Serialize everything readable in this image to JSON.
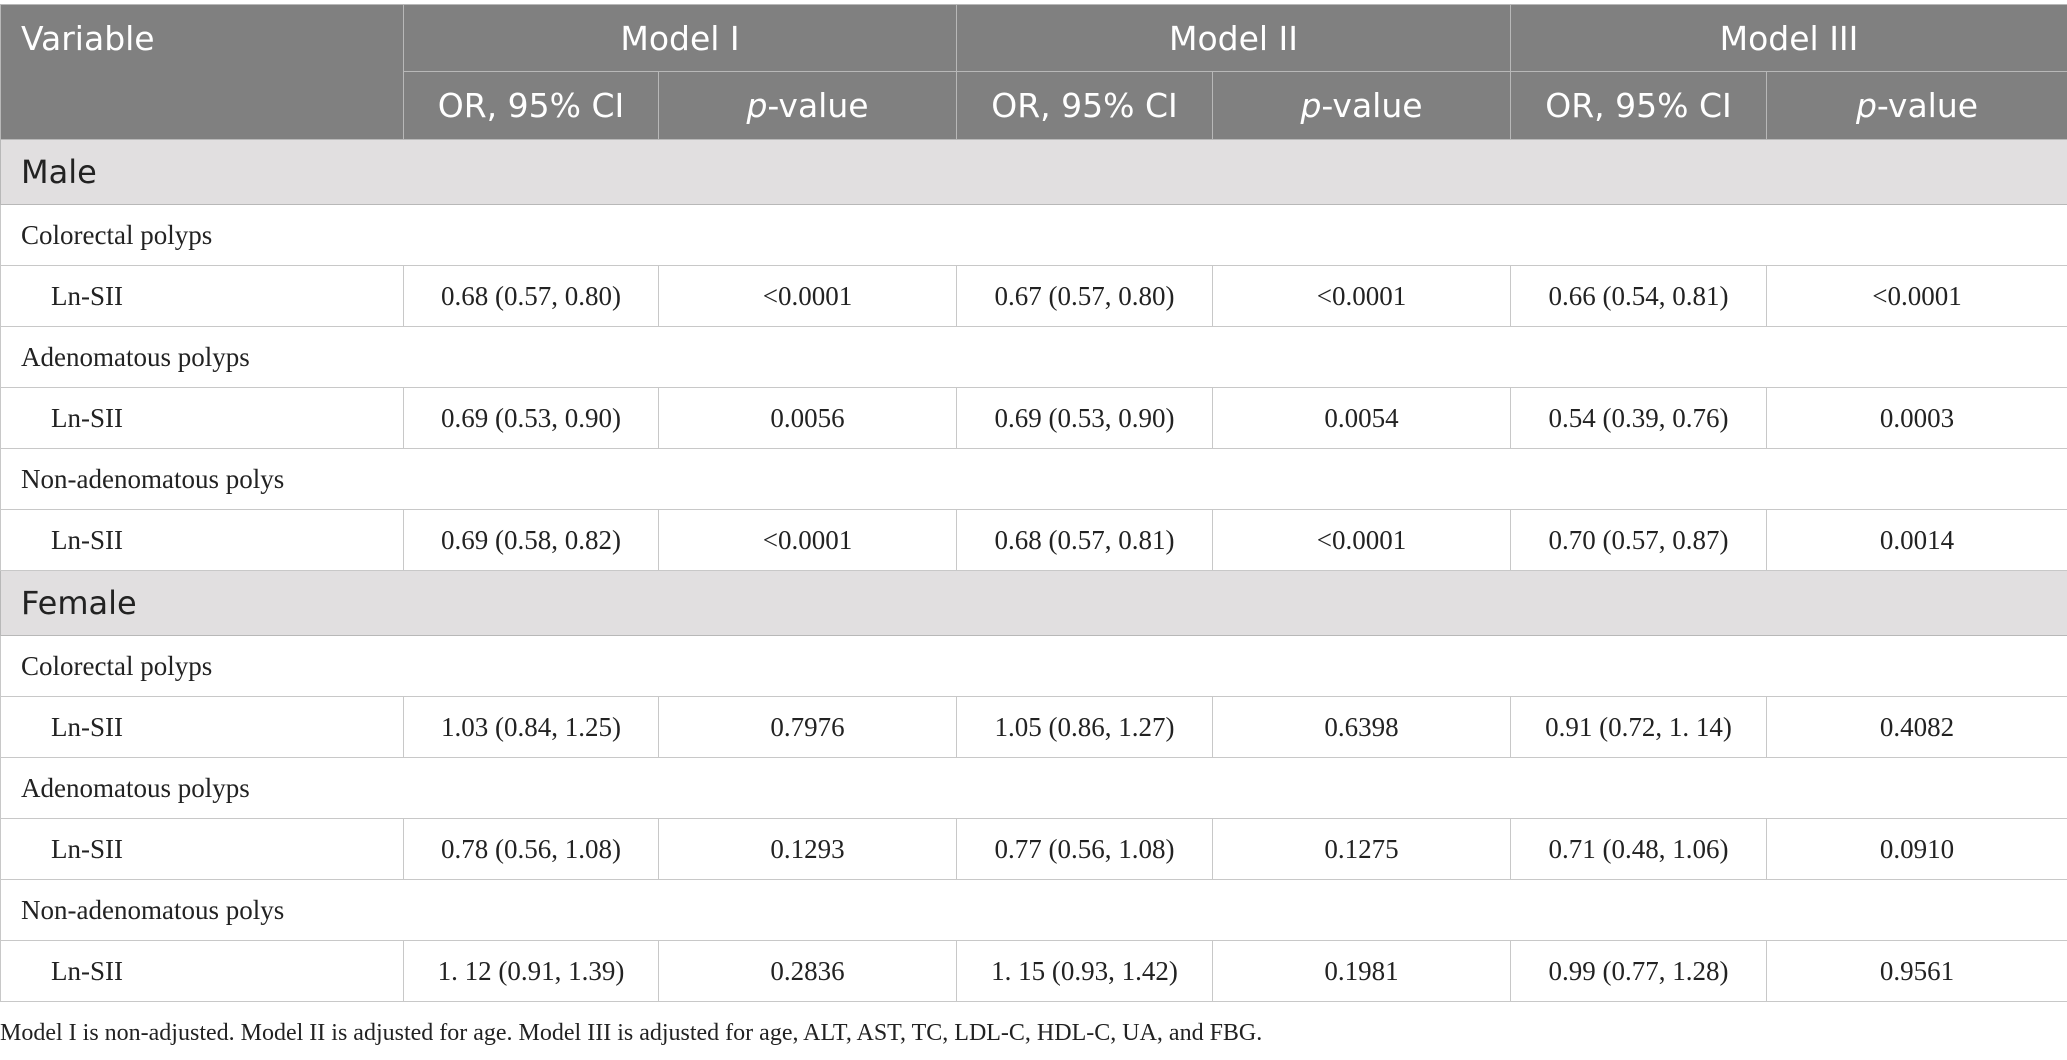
{
  "header": {
    "variable": "Variable",
    "models": [
      "Model I",
      "Model II",
      "Model III"
    ],
    "or_label": "OR, 95% CI",
    "p_italic": "p",
    "p_rest": "-value"
  },
  "sections": [
    {
      "title": "Male",
      "groups": [
        {
          "label": "Colorectal polyps",
          "row_label": "Ln-SII",
          "values": [
            "0.68 (0.57, 0.80)",
            "<0.0001",
            "0.67 (0.57, 0.80)",
            "<0.0001",
            "0.66 (0.54, 0.81)",
            "<0.0001"
          ]
        },
        {
          "label": "Adenomatous polyps",
          "row_label": "Ln-SII",
          "values": [
            "0.69 (0.53, 0.90)",
            "0.0056",
            "0.69 (0.53, 0.90)",
            "0.0054",
            "0.54 (0.39, 0.76)",
            "0.0003"
          ]
        },
        {
          "label": "Non-adenomatous polys",
          "row_label": "Ln-SII",
          "values": [
            "0.69 (0.58, 0.82)",
            "<0.0001",
            "0.68 (0.57, 0.81)",
            "<0.0001",
            "0.70 (0.57, 0.87)",
            "0.0014"
          ]
        }
      ]
    },
    {
      "title": "Female",
      "groups": [
        {
          "label": "Colorectal polyps",
          "row_label": "Ln-SII",
          "values": [
            "1.03 (0.84, 1.25)",
            "0.7976",
            "1.05 (0.86, 1.27)",
            "0.6398",
            "0.91 (0.72, 1. 14)",
            "0.4082"
          ]
        },
        {
          "label": "Adenomatous polyps",
          "row_label": "Ln-SII",
          "values": [
            "0.78 (0.56, 1.08)",
            "0.1293",
            "0.77 (0.56, 1.08)",
            "0.1275",
            "0.71 (0.48, 1.06)",
            "0.0910"
          ]
        },
        {
          "label": "Non-adenomatous polys",
          "row_label": "Ln-SII",
          "values": [
            "1. 12 (0.91, 1.39)",
            "0.2836",
            "1. 15 (0.93, 1.42)",
            "0.1981",
            "0.99 (0.77, 1.28)",
            "0.9561"
          ]
        }
      ]
    }
  ],
  "footnote": "Model I is non-adjusted. Model II is adjusted for age. Model III is adjusted for age, ALT, AST, TC, LDL-C, HDL-C, UA, and FBG."
}
